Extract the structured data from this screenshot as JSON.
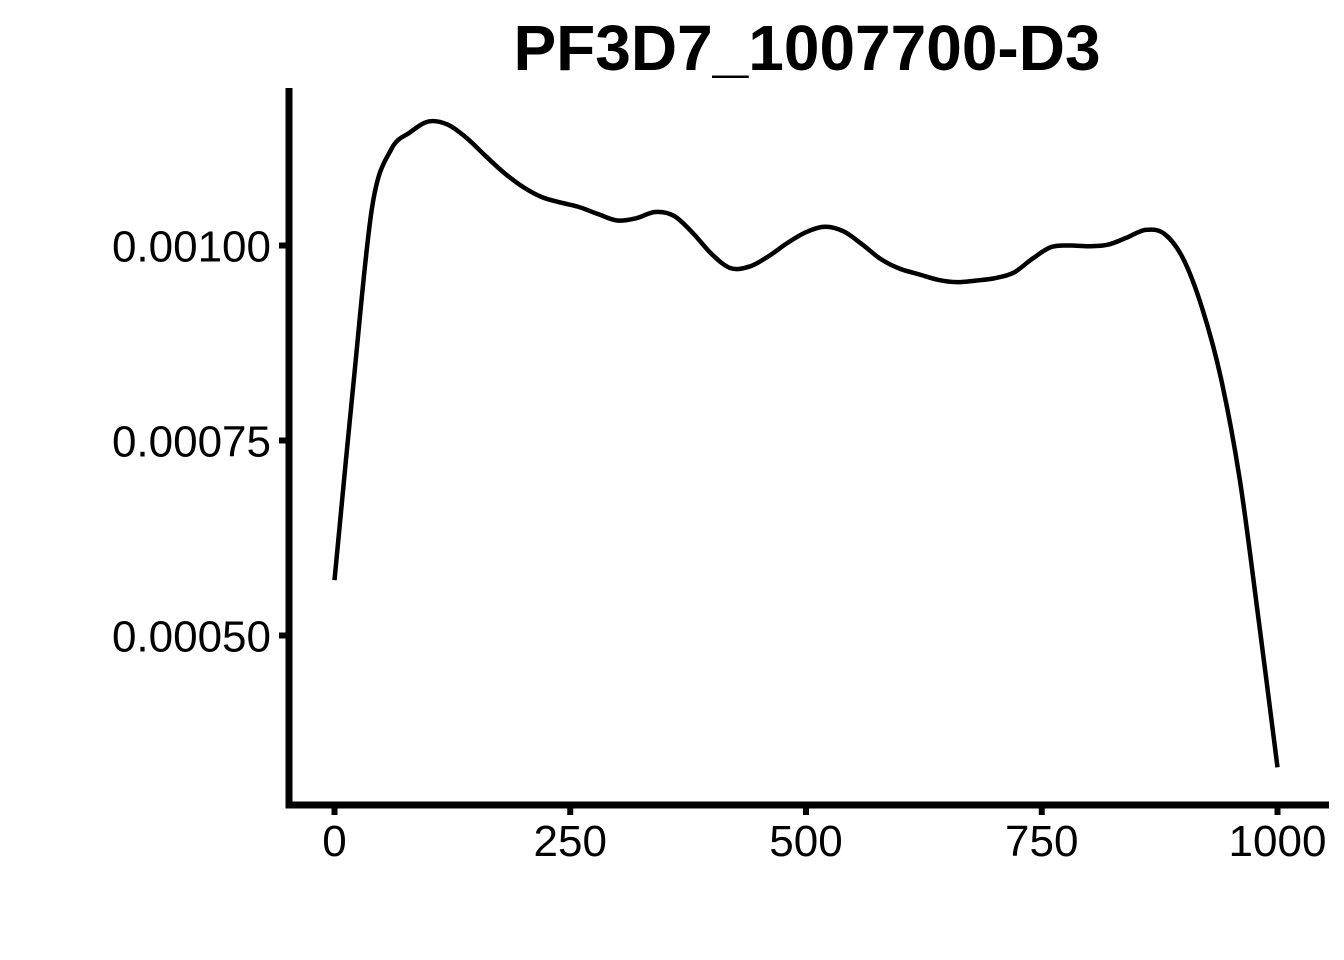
{
  "chart_data": {
    "type": "line",
    "title": "PF3D7_1007700-D3",
    "xlabel": "",
    "ylabel": "",
    "xlim": [
      -50,
      1050
    ],
    "ylim": [
      0.0003,
      0.0012
    ],
    "x_ticks": [
      0,
      250,
      500,
      750,
      1000
    ],
    "x_tick_labels": [
      "0",
      "250",
      "500",
      "750",
      "1000"
    ],
    "y_ticks": [
      0.0005,
      0.00075,
      0.001
    ],
    "y_tick_labels": [
      "0.00050",
      "0.00075",
      "0.00100"
    ],
    "grid": false,
    "legend": "none",
    "line_color": "#000000",
    "series": [
      {
        "x": [
          0,
          20,
          40,
          60,
          80,
          100,
          120,
          140,
          160,
          180,
          200,
          220,
          240,
          260,
          280,
          300,
          320,
          340,
          360,
          380,
          400,
          420,
          440,
          460,
          480,
          500,
          520,
          540,
          560,
          580,
          600,
          620,
          640,
          660,
          680,
          700,
          720,
          740,
          760,
          780,
          800,
          820,
          840,
          860,
          880,
          900,
          920,
          940,
          960,
          980,
          1000
        ],
        "y": [
          0.000571,
          0.000822,
          0.00105,
          0.001123,
          0.001145,
          0.001159,
          0.001155,
          0.001138,
          0.001115,
          0.001093,
          0.001075,
          0.001062,
          0.001055,
          0.001049,
          0.00104,
          0.001032,
          0.001035,
          0.001043,
          0.001038,
          0.001016,
          0.000989,
          0.000971,
          0.000973,
          0.000986,
          0.001003,
          0.001017,
          0.001024,
          0.001018,
          0.001001,
          0.000982,
          0.00097,
          0.000963,
          0.000956,
          0.000953,
          0.000955,
          0.000958,
          0.000965,
          0.000983,
          0.000998,
          0.001,
          0.000999,
          0.001001,
          0.00101,
          0.00102,
          0.001015,
          0.000983,
          0.00092,
          0.00083,
          0.0007,
          0.00052,
          0.000331
        ]
      }
    ]
  }
}
